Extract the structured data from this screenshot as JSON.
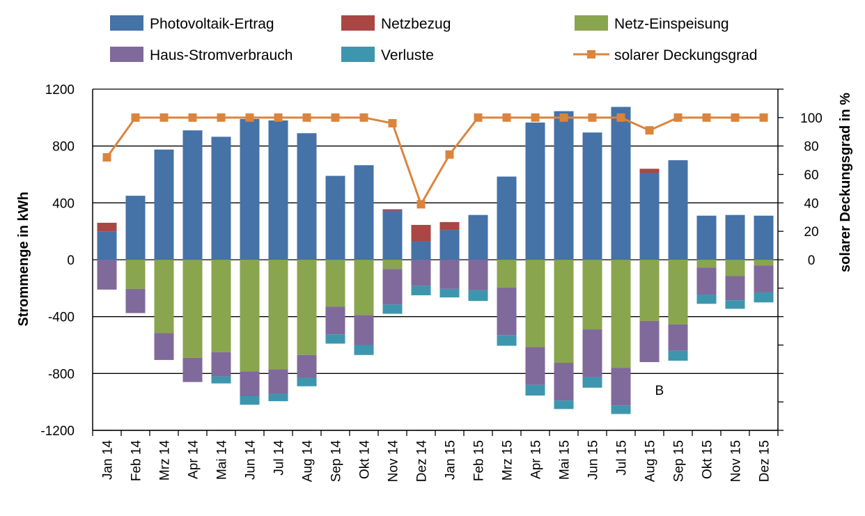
{
  "chart_data": {
    "type": "bar",
    "stacked": true,
    "categories": [
      "Jan 14",
      "Feb 14",
      "Mrz 14",
      "Apr 14",
      "Mai 14",
      "Jun 14",
      "Jul 14",
      "Aug 14",
      "Sep 14",
      "Okt 14",
      "Nov 14",
      "Dez 14",
      "Jan 15",
      "Feb 15",
      "Mrz 15",
      "Apr 15",
      "Mai 15",
      "Jun 15",
      "Jul 15",
      "Aug 15",
      "Sep 15",
      "Okt 15",
      "Nov 15",
      "Dez 15"
    ],
    "ylabel": "Strommenge in kWh",
    "y2label": "solarer Deckungsgrad in %",
    "ylim": [
      -1200,
      1200
    ],
    "y_ticks": [
      1200,
      800,
      400,
      0,
      -400,
      -800,
      -1200
    ],
    "y_tick_labels": [
      "1200",
      "800",
      "400",
      "0",
      "-400",
      "-800",
      "-1200"
    ],
    "y2lim": [
      -120,
      120
    ],
    "y2_ticks": [
      100,
      80,
      60,
      40,
      20,
      0
    ],
    "y2_tick_labels": [
      "100",
      "80",
      "60",
      "40",
      "20",
      "0"
    ],
    "grid": "horizontal",
    "legend_position": "top",
    "series": [
      {
        "name": "Photovoltaik-Ertrag",
        "color": "#4572A7",
        "kind": "bar-positive",
        "values": [
          200,
          450,
          775,
          910,
          865,
          990,
          980,
          890,
          590,
          665,
          345,
          130,
          210,
          315,
          585,
          965,
          1045,
          895,
          1075,
          610,
          700,
          310,
          315,
          310
        ]
      },
      {
        "name": "Netzbezug",
        "color": "#AA4643",
        "kind": "bar-positive",
        "values": [
          60,
          0,
          0,
          0,
          0,
          0,
          0,
          0,
          0,
          0,
          10,
          115,
          55,
          0,
          0,
          0,
          0,
          0,
          0,
          30,
          0,
          0,
          0,
          0
        ]
      },
      {
        "name": "Netz-Einspeisung",
        "color": "#89A54E",
        "kind": "bar-negative",
        "values": [
          0,
          -205,
          -515,
          -690,
          -650,
          -785,
          -770,
          -670,
          -330,
          -390,
          -65,
          0,
          0,
          0,
          -195,
          -615,
          -725,
          -490,
          -760,
          -430,
          -455,
          -55,
          -115,
          -40
        ]
      },
      {
        "name": "Haus-Stromverbrauch",
        "color": "#80699B",
        "kind": "bar-negative",
        "values": [
          -210,
          -170,
          -190,
          -170,
          -170,
          -175,
          -175,
          -160,
          -195,
          -210,
          -250,
          -185,
          -205,
          -215,
          -335,
          -265,
          -265,
          -335,
          -265,
          -290,
          -185,
          -190,
          -170,
          -190
        ]
      },
      {
        "name": "Verluste",
        "color": "#3D96AE",
        "kind": "bar-negative",
        "values": [
          0,
          0,
          0,
          0,
          -50,
          -60,
          -50,
          -60,
          -65,
          -70,
          -65,
          -65,
          -60,
          -75,
          -75,
          -75,
          -60,
          -75,
          -60,
          0,
          -70,
          -65,
          -60,
          -70
        ]
      },
      {
        "name": "solarer Deckungsgrad",
        "color": "#DB843D",
        "kind": "line",
        "axis": "y2",
        "values": [
          72,
          100,
          100,
          100,
          100,
          100,
          100,
          100,
          100,
          100,
          96,
          39,
          74,
          100,
          100,
          100,
          100,
          100,
          100,
          91,
          100,
          100,
          100,
          100
        ]
      }
    ],
    "annotations": [
      {
        "text": "B",
        "category": "Aug 15"
      }
    ]
  }
}
